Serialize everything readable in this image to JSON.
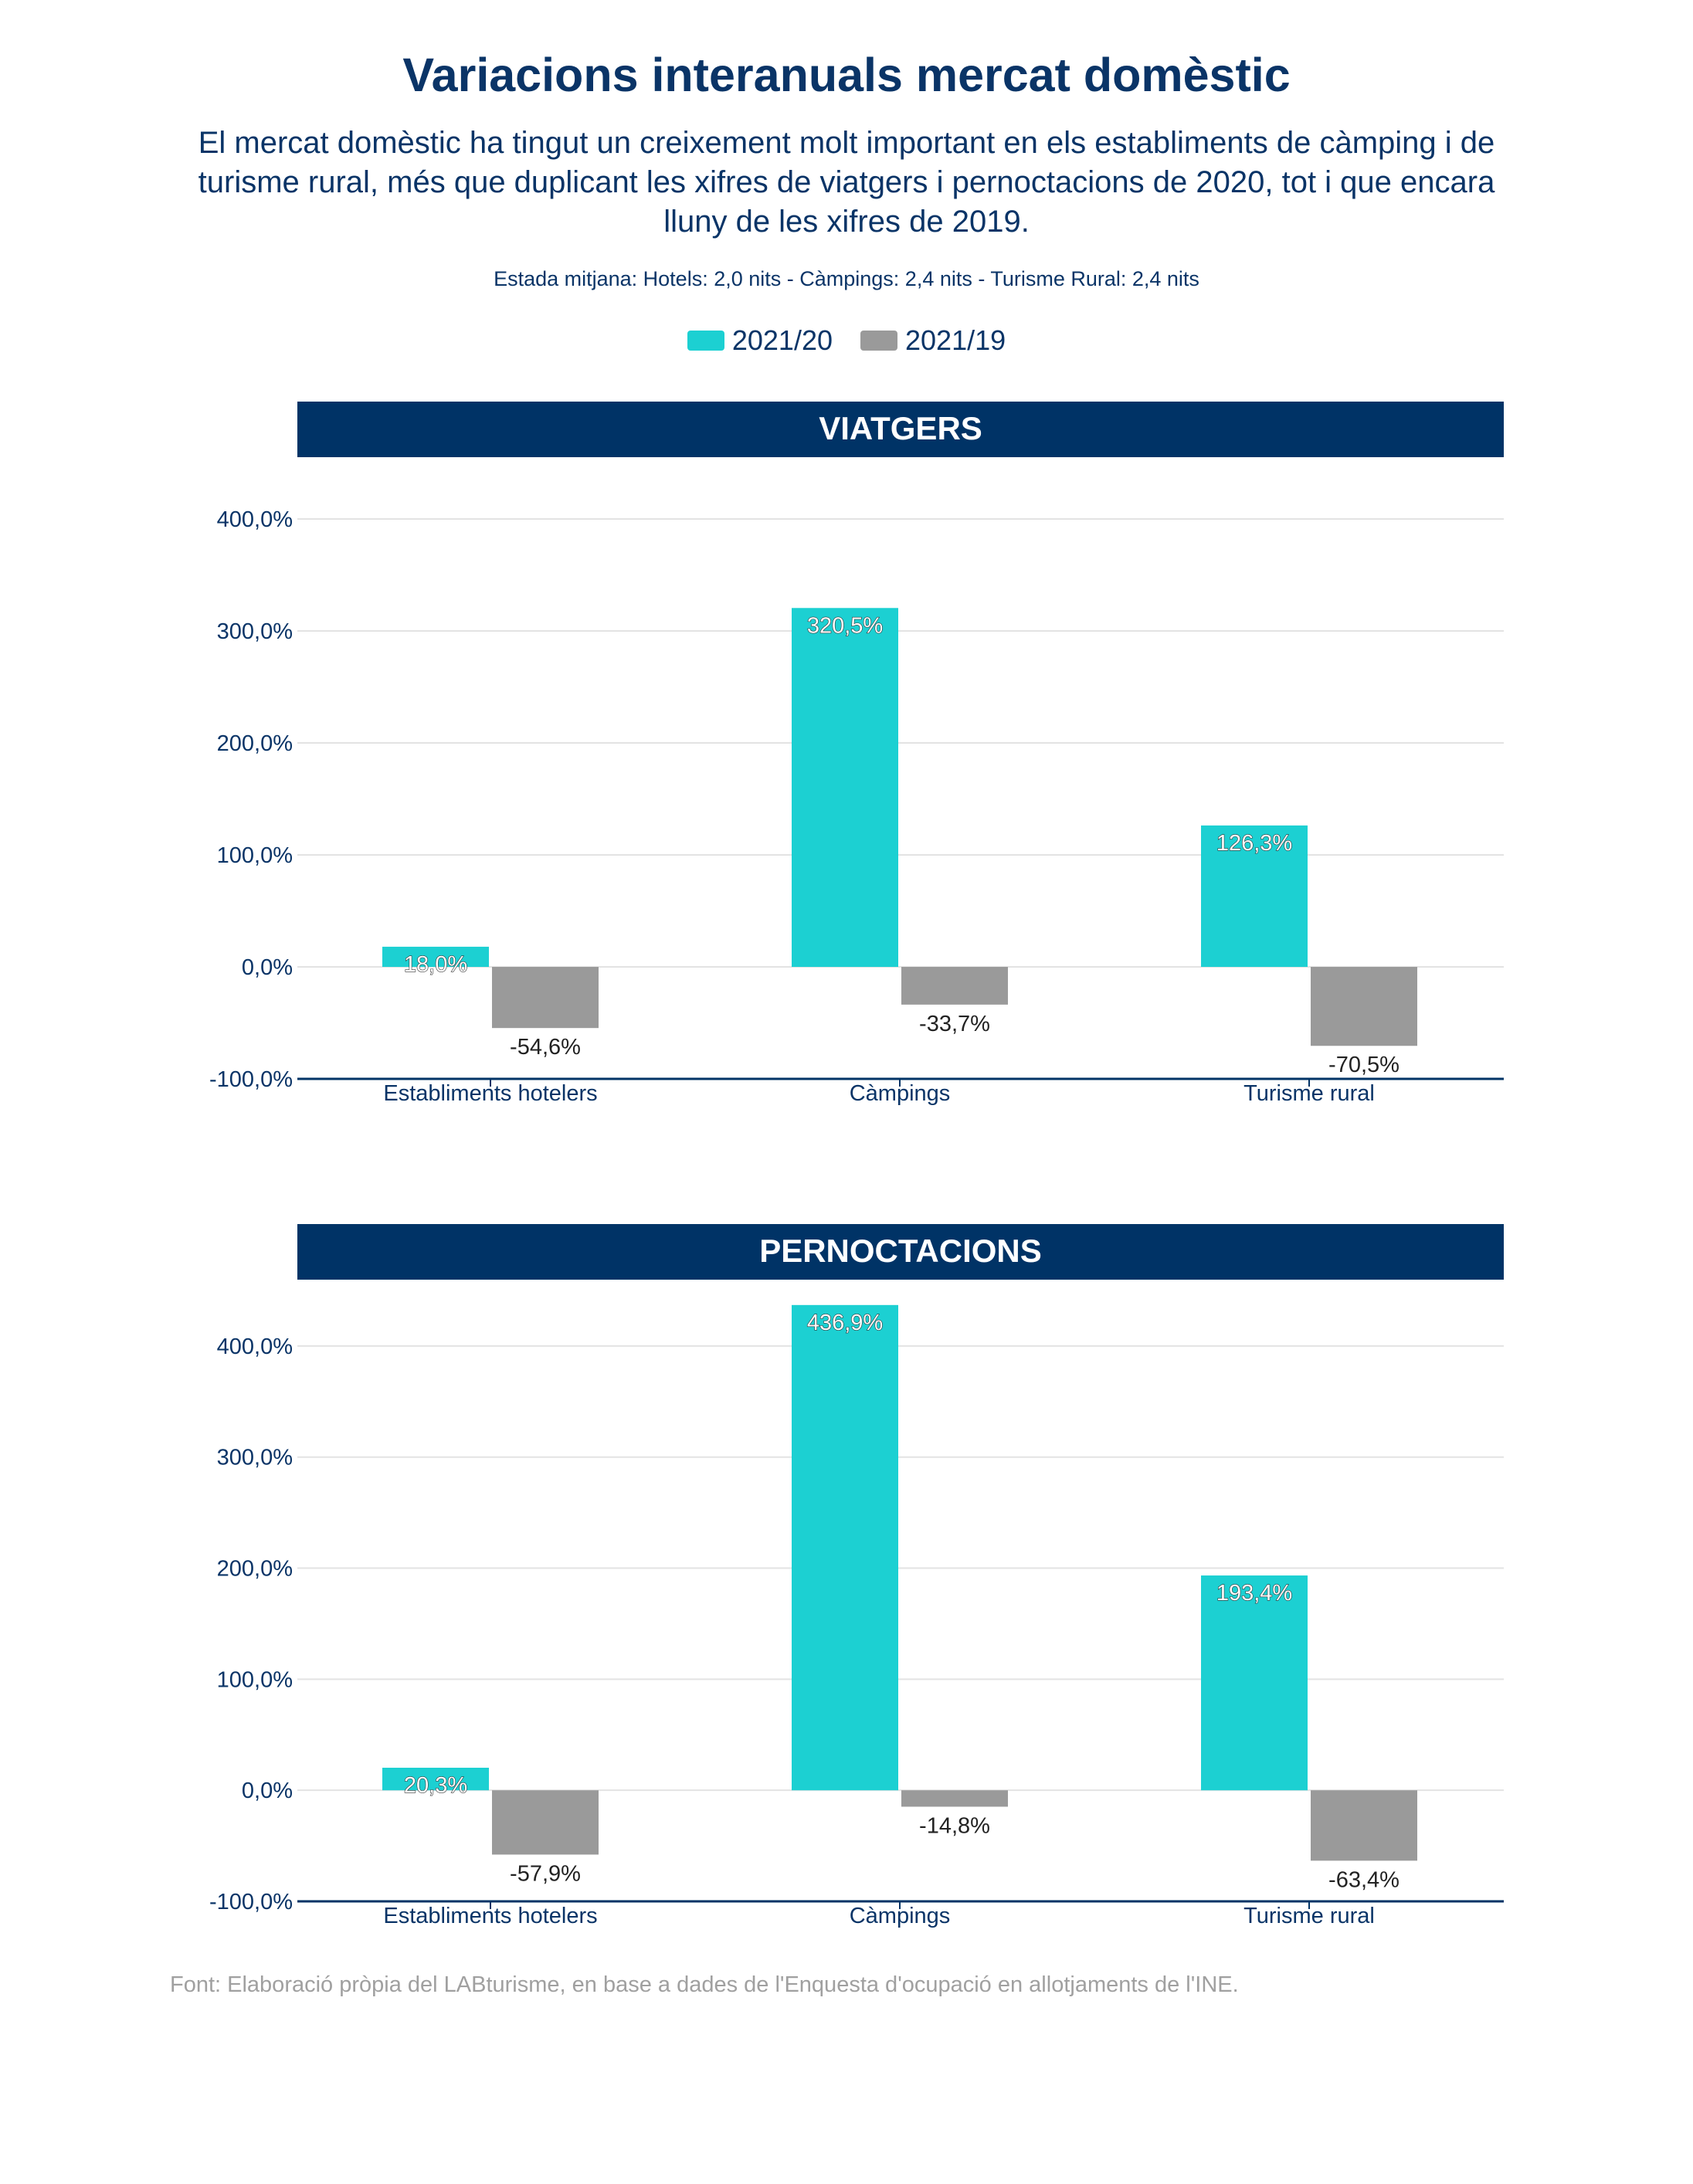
{
  "title": "Variacions interanuals mercat domèstic",
  "subtitle": "El mercat domèstic ha tingut un creixement molt important en els establiments de càmping i de turisme rural, més que duplicant les xifres de viatgers i pernoctacions de 2020, tot i que encara lluny de les xifres de 2019.",
  "note": "Estada mitjana: Hotels: 2,0 nits - Càmpings: 2,4 nits - Turisme Rural: 2,4 nits",
  "legend": [
    {
      "label": "2021/20",
      "color": "#1cd0d2"
    },
    {
      "label": "2021/19",
      "color": "#9a9a9a"
    }
  ],
  "source": "Font: Elaboració pròpia del LABturisme, en base a dades de l'Enquesta d'ocupació en allotjaments de l'INE.",
  "colors": {
    "header": "#003366",
    "text": "#0a3467",
    "series1": "#1cd0d2",
    "series2": "#9a9a9a"
  },
  "chart_data": [
    {
      "type": "bar",
      "title": "VIATGERS",
      "categories": [
        "Establiments hotelers",
        "Càmpings",
        "Turisme rural"
      ],
      "series": [
        {
          "name": "2021/20",
          "values": [
            18.0,
            320.5,
            126.3
          ],
          "labels": [
            "18,0%",
            "320,5%",
            "126,3%"
          ]
        },
        {
          "name": "2021/19",
          "values": [
            -54.6,
            -33.7,
            -70.5
          ],
          "labels": [
            "-54,6%",
            "-33,7%",
            "-70,5%"
          ]
        }
      ],
      "yticks": [
        "400,0%",
        "300,0%",
        "200,0%",
        "100,0%",
        "0,0%",
        "-100,0%"
      ],
      "ytick_values": [
        400,
        300,
        200,
        100,
        0,
        -100
      ],
      "ylim": [
        -100,
        400
      ],
      "grid": true
    },
    {
      "type": "bar",
      "title": "PERNOCTACIONS",
      "categories": [
        "Establiments hotelers",
        "Càmpings",
        "Turisme rural"
      ],
      "series": [
        {
          "name": "2021/20",
          "values": [
            20.3,
            436.9,
            193.4
          ],
          "labels": [
            "20,3%",
            "436,9%",
            "193,4%"
          ]
        },
        {
          "name": "2021/19",
          "values": [
            -57.9,
            -14.8,
            -63.4
          ],
          "labels": [
            "-57,9%",
            "-14,8%",
            "-63,4%"
          ]
        }
      ],
      "yticks": [
        "400,0%",
        "300,0%",
        "200,0%",
        "100,0%",
        "0,0%",
        "-100,0%"
      ],
      "ytick_values": [
        400,
        300,
        200,
        100,
        0,
        -100
      ],
      "ylim": [
        -100,
        450
      ],
      "grid": true
    }
  ]
}
